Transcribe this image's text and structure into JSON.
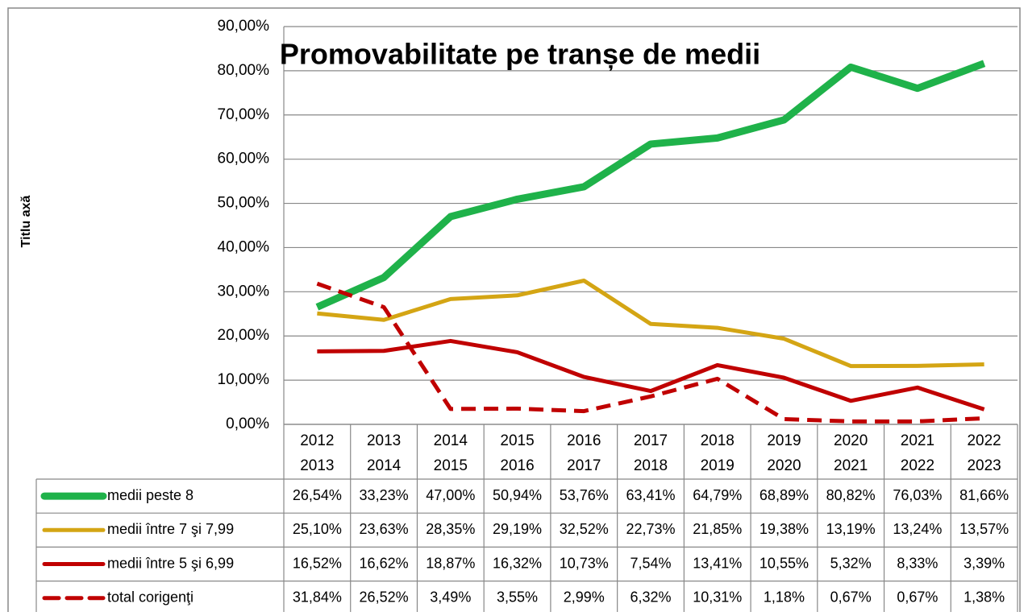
{
  "chart_data": {
    "type": "line",
    "title": "Promovabilitate pe tranșe de medii",
    "y_axis_label": "Titlu axă",
    "categories": [
      [
        "2012",
        "2013"
      ],
      [
        "2013",
        "2014"
      ],
      [
        "2014",
        "2015"
      ],
      [
        "2015",
        "2016"
      ],
      [
        "2016",
        "2017"
      ],
      [
        "2017",
        "2018"
      ],
      [
        "2018",
        "2019"
      ],
      [
        "2019",
        "2020"
      ],
      [
        "2020",
        "2021"
      ],
      [
        "2021",
        "2022"
      ],
      [
        "2022",
        "2023"
      ]
    ],
    "ylim": [
      0,
      90
    ],
    "yticks": [
      {
        "value": 0,
        "label": "0,00%"
      },
      {
        "value": 10,
        "label": "10,00%"
      },
      {
        "value": 20,
        "label": "20,00%"
      },
      {
        "value": 30,
        "label": "30,00%"
      },
      {
        "value": 40,
        "label": "40,00%"
      },
      {
        "value": 50,
        "label": "50,00%"
      },
      {
        "value": 60,
        "label": "60,00%"
      },
      {
        "value": 70,
        "label": "70,00%"
      },
      {
        "value": 80,
        "label": "80,00%"
      },
      {
        "value": 90,
        "label": "90,00%"
      }
    ],
    "grid": true,
    "series": [
      {
        "name": "medii peste 8",
        "color": "#1fb24a",
        "width": 9,
        "dashed": false,
        "values": [
          26.54,
          33.23,
          47.0,
          50.94,
          53.76,
          63.41,
          64.79,
          68.89,
          80.82,
          76.03,
          81.66
        ],
        "value_labels": [
          "26,54%",
          "33,23%",
          "47,00%",
          "50,94%",
          "53,76%",
          "63,41%",
          "64,79%",
          "68,89%",
          "80,82%",
          "76,03%",
          "81,66%"
        ]
      },
      {
        "name": "medii între 7 şi 7,99",
        "color": "#d4a514",
        "width": 5,
        "dashed": false,
        "values": [
          25.1,
          23.63,
          28.35,
          29.19,
          32.52,
          22.73,
          21.85,
          19.38,
          13.19,
          13.24,
          13.57
        ],
        "value_labels": [
          "25,10%",
          "23,63%",
          "28,35%",
          "29,19%",
          "32,52%",
          "22,73%",
          "21,85%",
          "19,38%",
          "13,19%",
          "13,24%",
          "13,57%"
        ]
      },
      {
        "name": "medii între 5 şi 6,99",
        "color": "#c00000",
        "width": 5,
        "dashed": false,
        "values": [
          16.52,
          16.62,
          18.87,
          16.32,
          10.73,
          7.54,
          13.41,
          10.55,
          5.32,
          8.33,
          3.39
        ],
        "value_labels": [
          "16,52%",
          "16,62%",
          "18,87%",
          "16,32%",
          "10,73%",
          "7,54%",
          "13,41%",
          "10,55%",
          "5,32%",
          "8,33%",
          "3,39%"
        ]
      },
      {
        "name": "total corigenţi",
        "color": "#c00000",
        "width": 5,
        "dashed": true,
        "values": [
          31.84,
          26.52,
          3.49,
          3.55,
          2.99,
          6.32,
          10.31,
          1.18,
          0.67,
          0.67,
          1.38
        ],
        "value_labels": [
          "31,84%",
          "26,52%",
          "3,49%",
          "3,55%",
          "2,99%",
          "6,32%",
          "10,31%",
          "1,18%",
          "0,67%",
          "0,67%",
          "1,38%"
        ]
      }
    ]
  }
}
